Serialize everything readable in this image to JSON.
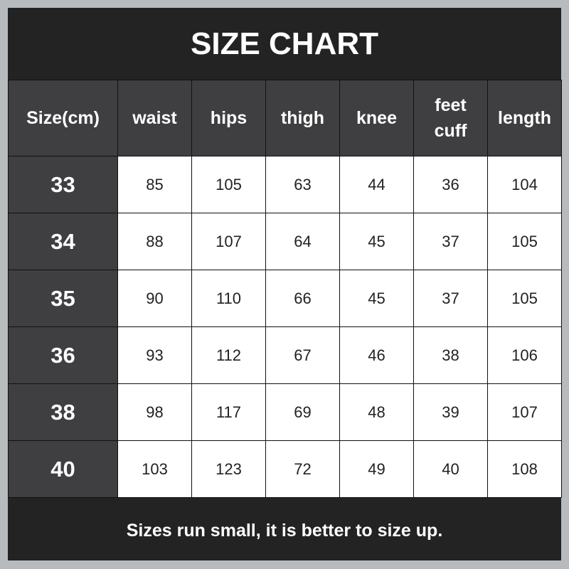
{
  "title": "SIZE CHART",
  "footer": "Sizes run small, it is better to size up.",
  "colors": {
    "background": "#232323",
    "header_cell": "#3f3f41",
    "data_cell": "#ffffff",
    "outer_border": "#b8bbbe"
  },
  "chart_data": {
    "type": "table",
    "columns": [
      "Size(cm)",
      "waist",
      "hips",
      "thigh",
      "knee",
      "feet cuff",
      "length"
    ],
    "rows": [
      [
        "33",
        "85",
        "105",
        "63",
        "44",
        "36",
        "104"
      ],
      [
        "34",
        "88",
        "107",
        "64",
        "45",
        "37",
        "105"
      ],
      [
        "35",
        "90",
        "110",
        "66",
        "45",
        "37",
        "105"
      ],
      [
        "36",
        "93",
        "112",
        "67",
        "46",
        "38",
        "106"
      ],
      [
        "38",
        "98",
        "117",
        "69",
        "48",
        "39",
        "107"
      ],
      [
        "40",
        "103",
        "123",
        "72",
        "49",
        "40",
        "108"
      ]
    ]
  }
}
